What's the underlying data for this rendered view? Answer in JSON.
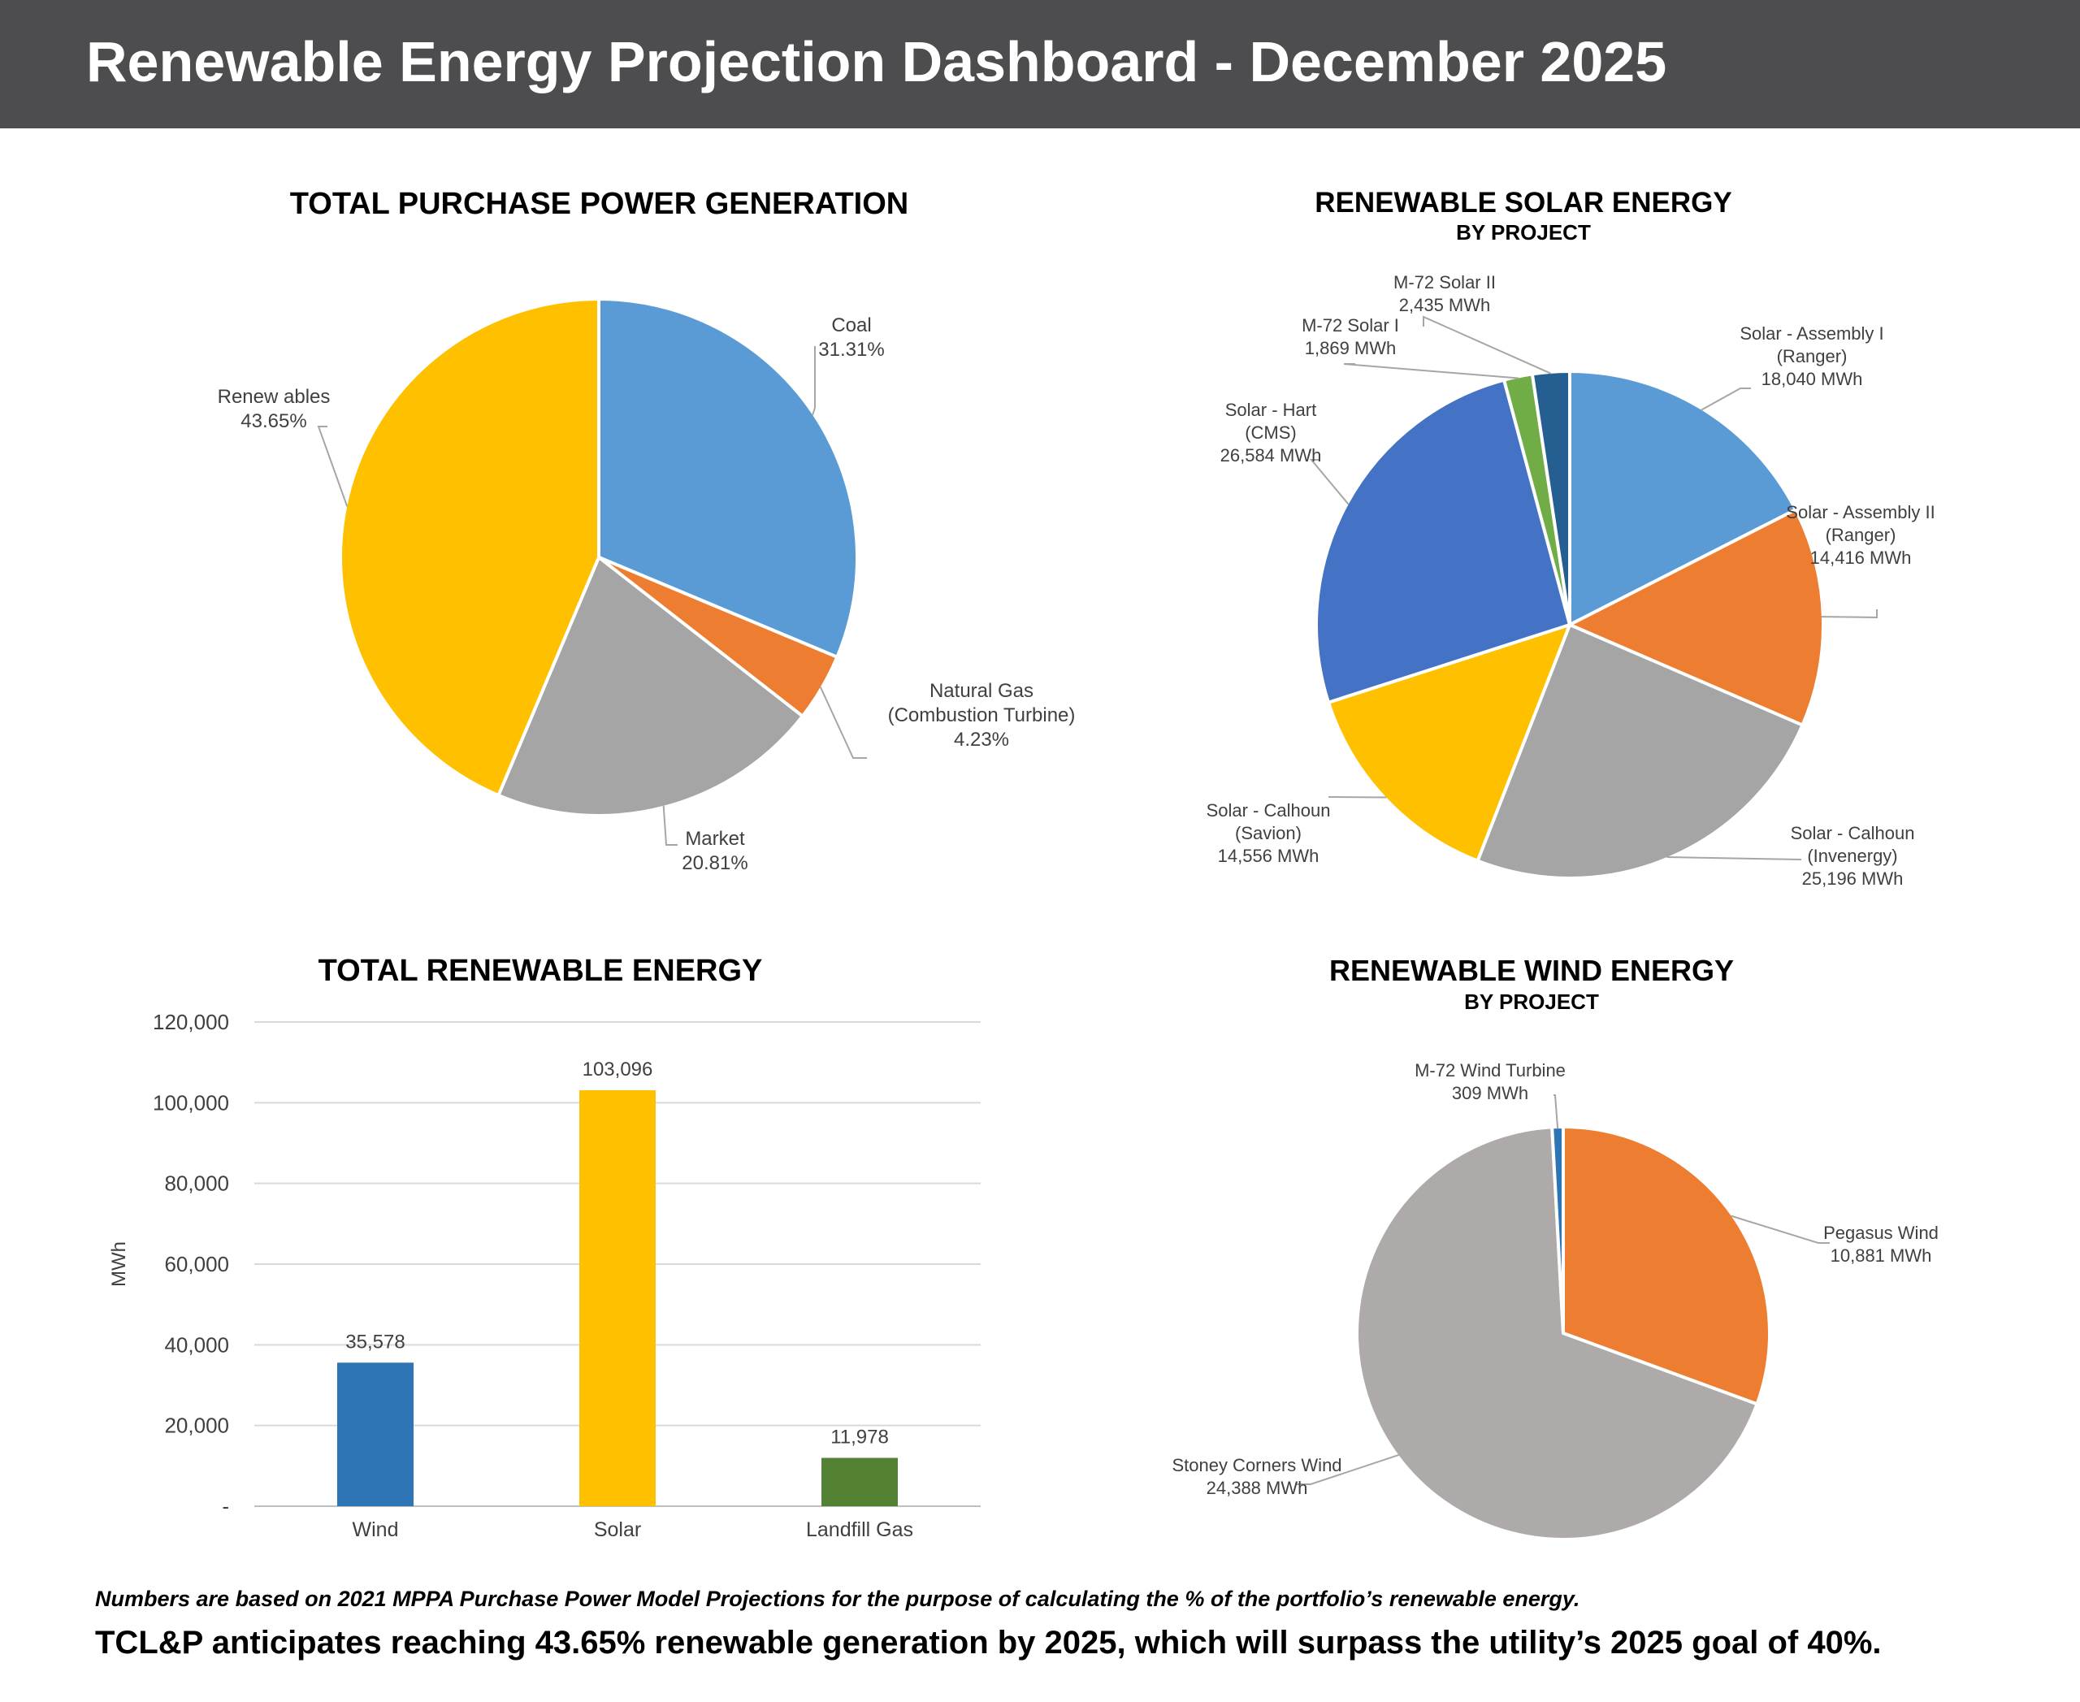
{
  "header": {
    "title": "Renewable Energy Projection Dashboard - December 2025"
  },
  "chart_data": [
    {
      "id": "purchase",
      "type": "pie",
      "title": "TOTAL PURCHASE POWER GENERATION",
      "slices": [
        {
          "lines": [
            "Coal",
            "31.31%"
          ],
          "value": 31.31,
          "color": "#5b9bd5"
        },
        {
          "lines": [
            "Natural Gas",
            "(Combustion Turbine)",
            "4.23%"
          ],
          "value": 4.23,
          "color": "#ed7d31"
        },
        {
          "lines": [
            "Market",
            "20.81%"
          ],
          "value": 20.81,
          "color": "#a5a5a5"
        },
        {
          "lines": [
            "Renew ables",
            "43.65%"
          ],
          "value": 43.65,
          "color": "#ffc000"
        }
      ]
    },
    {
      "id": "solar",
      "type": "pie",
      "title": "RENEWABLE SOLAR ENERGY",
      "subtitle": "BY PROJECT",
      "slices": [
        {
          "lines": [
            "Solar - Assembly I",
            "(Ranger)",
            "18,040 MWh"
          ],
          "value": 18040,
          "color": "#5b9bd5"
        },
        {
          "lines": [
            "Solar - Assembly II",
            "(Ranger)",
            "14,416 MWh"
          ],
          "value": 14416,
          "color": "#ed7d31"
        },
        {
          "lines": [
            "Solar - Calhoun",
            "(Invenergy)",
            "25,196 MWh"
          ],
          "value": 25196,
          "color": "#a5a5a5"
        },
        {
          "lines": [
            "Solar - Calhoun",
            "(Savion)",
            "14,556 MWh"
          ],
          "value": 14556,
          "color": "#ffc000"
        },
        {
          "lines": [
            "Solar - Hart",
            "(CMS)",
            "26,584 MWh"
          ],
          "value": 26584,
          "color": "#4472c4"
        },
        {
          "lines": [
            "M-72 Solar I",
            "1,869 MWh"
          ],
          "value": 1869,
          "color": "#70ad47"
        },
        {
          "lines": [
            "M-72 Solar II",
            "2,435 MWh"
          ],
          "value": 2435,
          "color": "#255e91"
        }
      ]
    },
    {
      "id": "renewable",
      "type": "bar",
      "title": "TOTAL RENEWABLE ENERGY",
      "ylabel": "MWh",
      "categories": [
        "Wind",
        "Solar",
        "Landfill Gas"
      ],
      "values": [
        35578,
        103096,
        11978
      ],
      "value_labels": [
        "35,578",
        "103,096",
        "11,978"
      ],
      "colors": [
        "#2e75b6",
        "#ffc000",
        "#548235"
      ],
      "ylim": [
        0,
        120000
      ],
      "yticks": [
        "-",
        "20,000",
        "40,000",
        "60,000",
        "80,000",
        "100,000",
        "120,000"
      ],
      "grid": true
    },
    {
      "id": "wind",
      "type": "pie",
      "title": "RENEWABLE WIND ENERGY",
      "subtitle": "BY PROJECT",
      "slices": [
        {
          "lines": [
            "Pegasus Wind",
            "10,881 MWh"
          ],
          "value": 10881,
          "color": "#ed7d31"
        },
        {
          "lines": [
            "Stoney Corners Wind",
            "24,388 MWh"
          ],
          "value": 24388,
          "color": "#aeaaaa"
        },
        {
          "lines": [
            "M-72 Wind Turbine",
            "309 MWh"
          ],
          "value": 309,
          "color": "#2e75b6"
        }
      ]
    }
  ],
  "footer": {
    "note": "Numbers are based on 2021 MPPA Purchase Power Model Projections for the purpose of calculating the % of the portfolio’s renewable energy.",
    "conclusion": "TCL&P anticipates reaching 43.65% renewable generation by 2025, which will surpass the utility’s 2025 goal of 40%."
  }
}
